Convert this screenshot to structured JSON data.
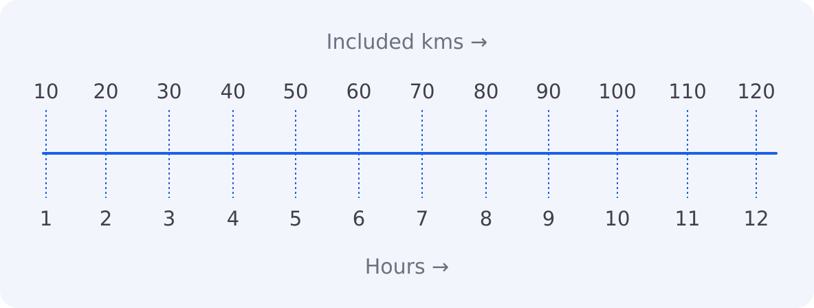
{
  "top_axis": {
    "title": "Included kms →",
    "labels": [
      "10",
      "20",
      "30",
      "40",
      "50",
      "60",
      "70",
      "80",
      "90",
      "100",
      "110",
      "120"
    ]
  },
  "bottom_axis": {
    "title": "Hours →",
    "labels": [
      "1",
      "2",
      "3",
      "4",
      "5",
      "6",
      "7",
      "8",
      "9",
      "10",
      "11",
      "12"
    ]
  },
  "colors": {
    "background": "#f3f5fd",
    "line": "#1a62e6",
    "tick_line": "#1a62e6",
    "title_text": "#6c727f",
    "label_text": "#3f4147"
  }
}
